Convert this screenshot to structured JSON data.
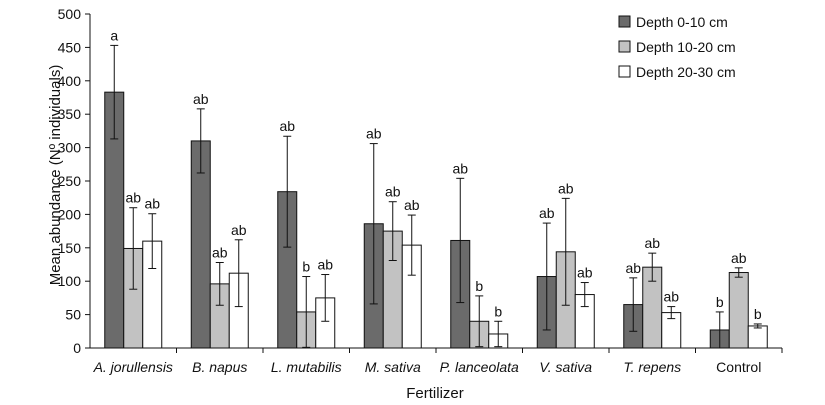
{
  "chart_data": {
    "type": "bar",
    "xlabel": "Fertilizer",
    "ylabel": "Mean abundance (Nº individuals)",
    "ylim": [
      0,
      500
    ],
    "yticks": [
      0,
      50,
      100,
      150,
      200,
      250,
      300,
      350,
      400,
      450,
      500
    ],
    "grid": false,
    "legend_position": "top-right",
    "categories": [
      "A. jorullensis",
      "B. napus",
      "L. mutabilis",
      "M. sativa",
      "P. lanceolata",
      "V. sativa",
      "T. repens",
      "Control"
    ],
    "categories_italic": [
      true,
      true,
      true,
      true,
      true,
      true,
      true,
      false
    ],
    "series": [
      {
        "name": "Depth 0-10 cm",
        "color": "#6b6b6b",
        "values": [
          383,
          310,
          234,
          186,
          161,
          107,
          65,
          27
        ],
        "errors": [
          70,
          48,
          83,
          120,
          93,
          80,
          40,
          27
        ],
        "labels": [
          "a",
          "ab",
          "ab",
          "ab",
          "ab",
          "ab",
          "ab",
          "b"
        ]
      },
      {
        "name": "Depth 10-20 cm",
        "color": "#c2c2c2",
        "values": [
          149,
          96,
          54,
          175,
          40,
          144,
          121,
          113
        ],
        "errors": [
          61,
          32,
          53,
          44,
          38,
          80,
          21,
          7
        ],
        "labels": [
          "ab",
          "ab",
          "b",
          "ab",
          "b",
          "ab",
          "ab",
          "ab"
        ]
      },
      {
        "name": "Depth 20-30 cm",
        "color": "#ffffff",
        "values": [
          160,
          112,
          75,
          154,
          21,
          80,
          53,
          33
        ],
        "errors": [
          41,
          50,
          35,
          45,
          19,
          18,
          9,
          3
        ],
        "labels": [
          "ab",
          "ab",
          "ab",
          "ab",
          "b",
          "ab",
          "ab",
          "b"
        ]
      }
    ]
  }
}
